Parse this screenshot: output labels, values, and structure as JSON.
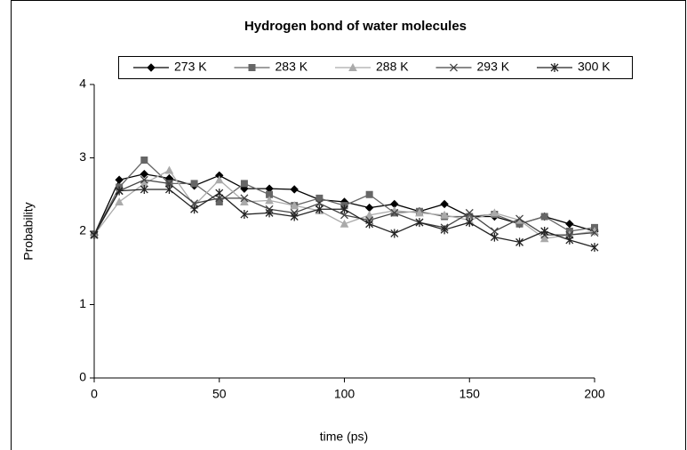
{
  "chart_data": {
    "type": "line",
    "title": "Hydrogen bond of water molecules",
    "xlabel": "time (ps)",
    "ylabel": "Probability",
    "x": [
      0,
      10,
      20,
      30,
      40,
      50,
      60,
      70,
      80,
      90,
      100,
      110,
      120,
      130,
      140,
      150,
      160,
      170,
      180,
      190,
      200
    ],
    "series": [
      {
        "name": "273 K",
        "color": "#000000",
        "marker": "diamond",
        "values": [
          1.95,
          2.7,
          2.78,
          2.72,
          2.62,
          2.76,
          2.58,
          2.58,
          2.57,
          2.43,
          2.4,
          2.32,
          2.37,
          2.27,
          2.37,
          2.2,
          2.2,
          2.1,
          2.2,
          2.1,
          2.0
        ]
      },
      {
        "name": "283 K",
        "color": "#666666",
        "marker": "square",
        "values": [
          1.95,
          2.6,
          2.97,
          2.65,
          2.65,
          2.4,
          2.65,
          2.5,
          2.35,
          2.45,
          2.35,
          2.5,
          2.25,
          2.27,
          2.2,
          2.2,
          2.23,
          2.1,
          2.2,
          2.0,
          2.05
        ]
      },
      {
        "name": "288 K",
        "color": "#aaaaaa",
        "marker": "triangle",
        "values": [
          1.95,
          2.4,
          2.65,
          2.83,
          2.35,
          2.7,
          2.4,
          2.42,
          2.35,
          2.28,
          2.1,
          2.22,
          2.28,
          2.25,
          2.22,
          2.15,
          2.25,
          2.15,
          1.9,
          1.95,
          2.0
        ]
      },
      {
        "name": "293 K",
        "color": "#444444",
        "marker": "x",
        "values": [
          1.95,
          2.55,
          2.7,
          2.65,
          2.38,
          2.45,
          2.45,
          2.3,
          2.25,
          2.38,
          2.22,
          2.15,
          2.25,
          2.12,
          2.05,
          2.25,
          2.0,
          2.17,
          1.95,
          1.95,
          1.98
        ]
      },
      {
        "name": "300 K",
        "color": "#222222",
        "marker": "star",
        "values": [
          1.95,
          2.55,
          2.57,
          2.57,
          2.3,
          2.52,
          2.23,
          2.25,
          2.2,
          2.3,
          2.3,
          2.1,
          1.97,
          2.12,
          2.02,
          2.12,
          1.92,
          1.85,
          2.0,
          1.88,
          1.78
        ]
      }
    ],
    "xlim": [
      0,
      200
    ],
    "xticks": [
      0,
      50,
      100,
      150,
      200
    ],
    "ylim": [
      0,
      4
    ],
    "yticks": [
      0,
      1,
      2,
      3,
      4
    ],
    "grid": false,
    "legend": "top"
  }
}
